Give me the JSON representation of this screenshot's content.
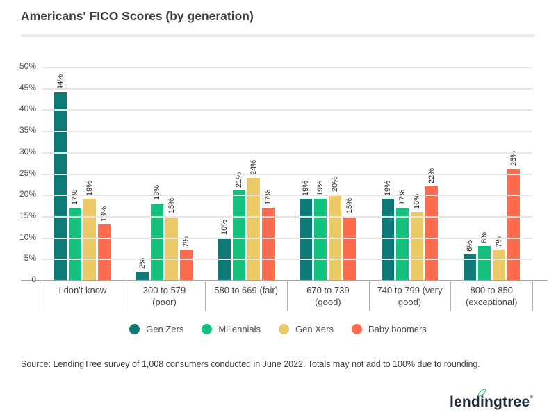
{
  "title": "Americans' FICO Scores (by generation)",
  "chart_data": {
    "type": "bar",
    "categories": [
      "I don't know",
      "300 to 579 (poor)",
      "580 to 669 (fair)",
      "670 to 739 (good)",
      "740 to 799 (very good)",
      "800 to 850 (exceptional)"
    ],
    "series": [
      {
        "name": "Gen Zers",
        "color": "#0e7a78",
        "values": [
          44,
          2,
          10,
          19,
          19,
          6
        ]
      },
      {
        "name": "Millennials",
        "color": "#15bf7d",
        "values": [
          17,
          18,
          21,
          19,
          17,
          8
        ]
      },
      {
        "name": "Gen Xers",
        "color": "#ecc967",
        "values": [
          19,
          15,
          24,
          20,
          16,
          7
        ]
      },
      {
        "name": "Baby boomers",
        "color": "#fc6b4e",
        "values": [
          13,
          7,
          17,
          15,
          22,
          26
        ]
      }
    ],
    "ylim": [
      0,
      50
    ],
    "ytick_step": 5,
    "ytick_labels": [
      "50%",
      "45%",
      "40%",
      "35%",
      "30%",
      "25%",
      "20%",
      "15%",
      "10%",
      "5%",
      "0"
    ],
    "data_label_suffix": "%",
    "grid": true,
    "legend_position": "bottom"
  },
  "source_note": "Source: LendingTree survey of 1,008 consumers conducted in June 2022. Totals may not add to 100% due to rounding.",
  "logo": {
    "text": "lendingtree",
    "parts": [
      "lend",
      "i",
      "ngtree"
    ],
    "trademark": "®",
    "navy": "#1b2a3b",
    "leaf_green": "#1eb772"
  }
}
